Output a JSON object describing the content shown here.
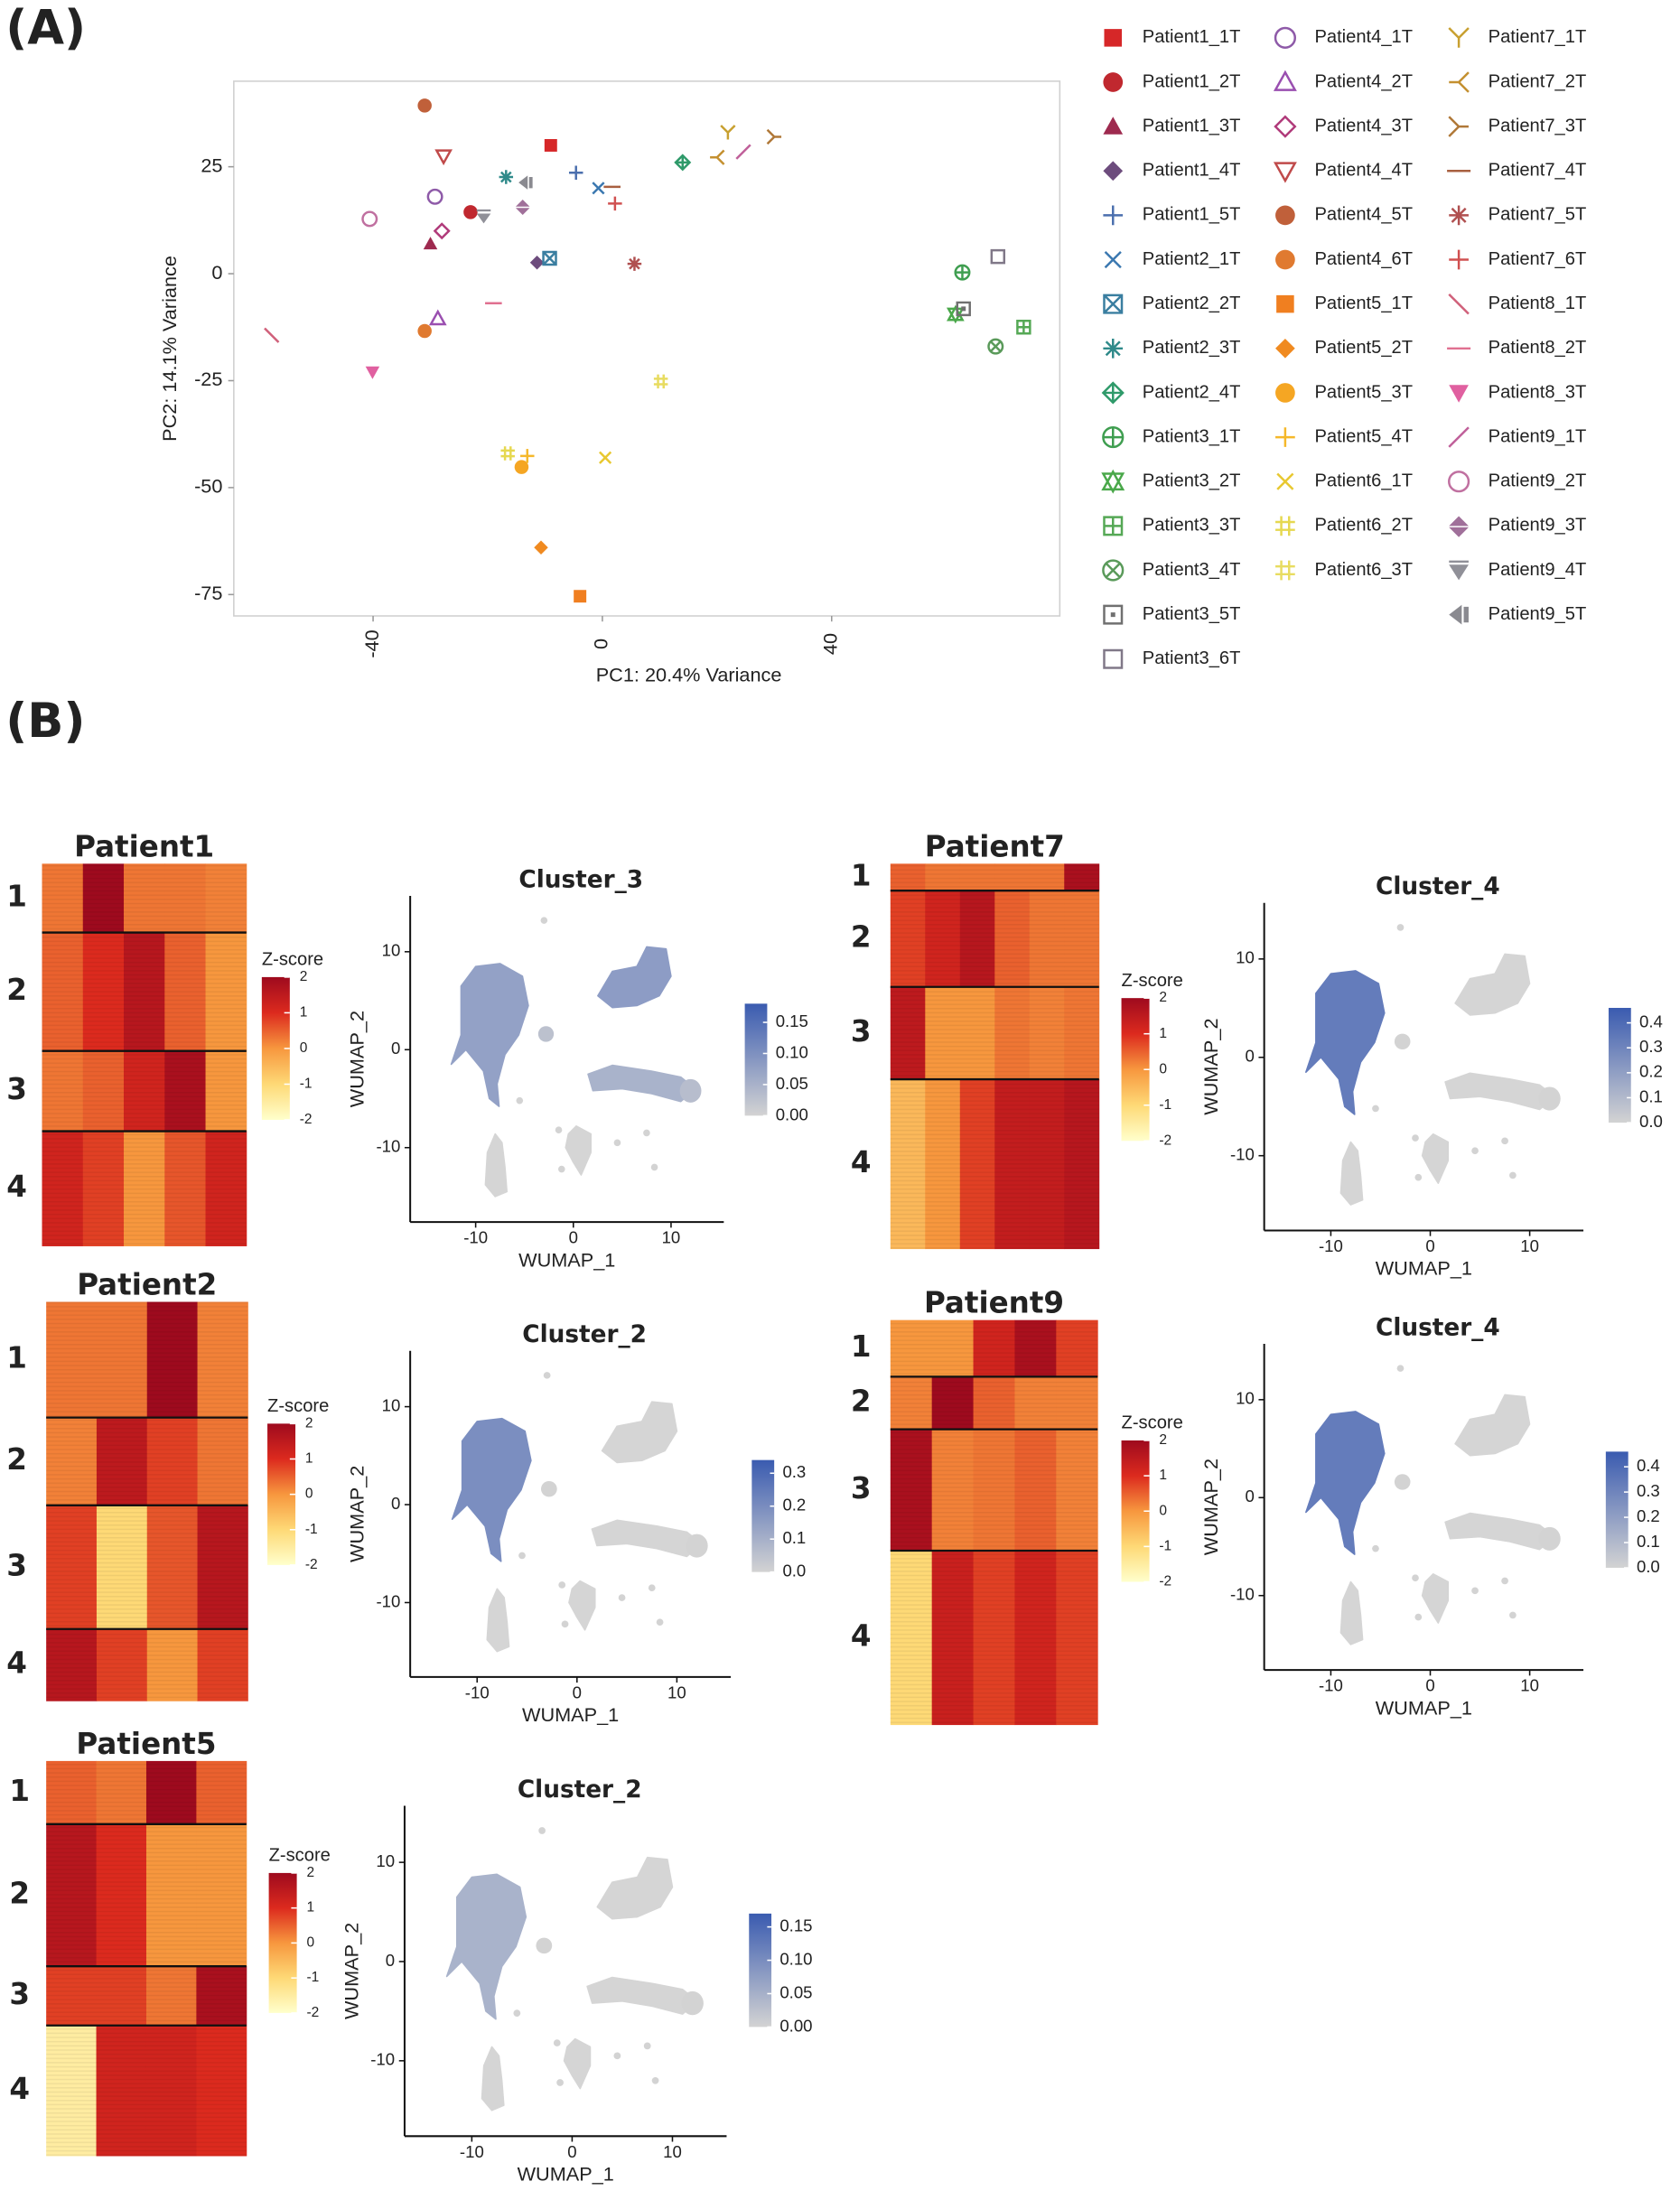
{
  "panel_labels": [
    "(A)",
    "(B)"
  ],
  "chart_data": [
    {
      "type": "scatter",
      "xlabel": "PC1: 20.4% Variance",
      "ylabel": "PC2: 14.1% Variance",
      "xlim": [
        -64.3,
        79.8
      ],
      "ylim": [
        -80,
        45
      ],
      "xticks": [
        -40,
        0,
        40
      ],
      "yticks": [
        25,
        0,
        -25,
        -50,
        -75
      ],
      "grid": false,
      "series": [
        {
          "name": "Patient1_1T",
          "color": "#d62728",
          "marker": "square",
          "x": [
            -9
          ],
          "values": [
            30
          ]
        },
        {
          "name": "Patient1_2T",
          "color": "#c0282f",
          "marker": "circle",
          "x": [
            -23
          ],
          "values": [
            14.4
          ]
        },
        {
          "name": "Patient1_3T",
          "color": "#9e2a4f",
          "marker": "triangle",
          "x": [
            -30
          ],
          "values": [
            7
          ]
        },
        {
          "name": "Patient1_4T",
          "color": "#6d4c7d",
          "marker": "diamond",
          "x": [
            -11.4
          ],
          "values": [
            2.6
          ]
        },
        {
          "name": "Patient1_5T",
          "color": "#4b6fae",
          "marker": "plus",
          "x": [
            -4.6
          ],
          "values": [
            23.6
          ]
        },
        {
          "name": "Patient2_1T",
          "color": "#3b78b0",
          "marker": "cross",
          "x": [
            -0.7
          ],
          "values": [
            20
          ]
        },
        {
          "name": "Patient2_2T",
          "color": "#3a7ea0",
          "marker": "boxcross",
          "x": [
            -9.2
          ],
          "values": [
            3.6
          ]
        },
        {
          "name": "Patient2_3T",
          "color": "#2f8a8a",
          "marker": "asterisk",
          "x": [
            -16.8
          ],
          "values": [
            22.6
          ]
        },
        {
          "name": "Patient2_4T",
          "color": "#2f9a6a",
          "marker": "diamondplus",
          "x": [
            14
          ],
          "values": [
            26
          ]
        },
        {
          "name": "Patient3_1T",
          "color": "#3f9e50",
          "marker": "circleplus",
          "x": [
            62.8
          ],
          "values": [
            0.3
          ]
        },
        {
          "name": "Patient3_2T",
          "color": "#4aa84a",
          "marker": "star",
          "x": [
            61.6
          ],
          "values": [
            -9.5
          ]
        },
        {
          "name": "Patient3_3T",
          "color": "#55a855",
          "marker": "boxplus",
          "x": [
            73.5
          ],
          "values": [
            -12.5
          ]
        },
        {
          "name": "Patient3_4T",
          "color": "#5a9a5a",
          "marker": "circlecross",
          "x": [
            68.6
          ],
          "values": [
            -17
          ]
        },
        {
          "name": "Patient3_5T",
          "color": "#707070",
          "marker": "boxdot",
          "x": [
            63
          ],
          "values": [
            -8.2
          ]
        },
        {
          "name": "Patient3_6T",
          "color": "#807888",
          "marker": "opensquare",
          "x": [
            69
          ],
          "values": [
            4
          ]
        },
        {
          "name": "Patient4_1T",
          "color": "#8e5aa8",
          "marker": "opencircle",
          "x": [
            -29.2
          ],
          "values": [
            18
          ]
        },
        {
          "name": "Patient4_2T",
          "color": "#9a4fb0",
          "marker": "opentriangle",
          "x": [
            -28.7
          ],
          "values": [
            -10.5
          ]
        },
        {
          "name": "Patient4_3T",
          "color": "#b03a7a",
          "marker": "opendiamond",
          "x": [
            -28
          ],
          "values": [
            10
          ]
        },
        {
          "name": "Patient4_4T",
          "color": "#c04a4a",
          "marker": "opentriangledown",
          "x": [
            -27.7
          ],
          "values": [
            27.5
          ]
        },
        {
          "name": "Patient4_5T",
          "color": "#c0603a",
          "marker": "circle",
          "x": [
            -31
          ],
          "values": [
            39.3
          ]
        },
        {
          "name": "Patient4_6T",
          "color": "#e07a30",
          "marker": "circle",
          "x": [
            -31
          ],
          "values": [
            -13.4
          ]
        },
        {
          "name": "Patient5_1T",
          "color": "#f07f20",
          "marker": "square",
          "x": [
            -3.9
          ],
          "values": [
            -75.4
          ]
        },
        {
          "name": "Patient5_2T",
          "color": "#f08a20",
          "marker": "diamond",
          "x": [
            -10.7
          ],
          "values": [
            -64
          ]
        },
        {
          "name": "Patient5_3T",
          "color": "#f5a623",
          "marker": "circle",
          "x": [
            -14.1
          ],
          "values": [
            -45.2
          ]
        },
        {
          "name": "Patient5_4T",
          "color": "#f5b82a",
          "marker": "plus",
          "x": [
            -13.1
          ],
          "values": [
            -42.6
          ]
        },
        {
          "name": "Patient6_1T",
          "color": "#e8c830",
          "marker": "cross",
          "x": [
            0.5
          ],
          "values": [
            -43
          ]
        },
        {
          "name": "Patient6_2T",
          "color": "#e6d850",
          "marker": "hash",
          "x": [
            -16.5
          ],
          "values": [
            -42
          ]
        },
        {
          "name": "Patient6_3T",
          "color": "#e8dc60",
          "marker": "hash",
          "x": [
            10.2
          ],
          "values": [
            -25.2
          ]
        },
        {
          "name": "Patient7_1T",
          "color": "#c8a030",
          "marker": "Y",
          "x": [
            21.9
          ],
          "values": [
            33
          ]
        },
        {
          "name": "Patient7_2T",
          "color": "#c49030",
          "marker": "trileft",
          "x": [
            20
          ],
          "values": [
            27.2
          ]
        },
        {
          "name": "Patient7_3T",
          "color": "#b07838",
          "marker": "triright",
          "x": [
            30
          ],
          "values": [
            32
          ]
        },
        {
          "name": "Patient7_4T",
          "color": "#a86040",
          "marker": "dash",
          "x": [
            1.7
          ],
          "values": [
            20.3
          ]
        },
        {
          "name": "Patient7_5T",
          "color": "#b05050",
          "marker": "asterisk",
          "x": [
            5.6
          ],
          "values": [
            2.3
          ]
        },
        {
          "name": "Patient7_6T",
          "color": "#d05050",
          "marker": "plus",
          "x": [
            2.2
          ],
          "values": [
            16.4
          ]
        },
        {
          "name": "Patient8_1T",
          "color": "#d0607a",
          "marker": "backslash",
          "x": [
            -57.7
          ],
          "values": [
            -14.4
          ]
        },
        {
          "name": "Patient8_2T",
          "color": "#e07090",
          "marker": "dash",
          "x": [
            -19
          ],
          "values": [
            -6.9
          ]
        },
        {
          "name": "Patient8_3T",
          "color": "#e060a0",
          "marker": "triangledown",
          "x": [
            -40.1
          ],
          "values": [
            -23
          ]
        },
        {
          "name": "Patient9_1T",
          "color": "#c0609a",
          "marker": "slash",
          "x": [
            24.6
          ],
          "values": [
            28.5
          ]
        },
        {
          "name": "Patient9_2T",
          "color": "#c070a0",
          "marker": "opencircle",
          "x": [
            -40.6
          ],
          "values": [
            12.8
          ]
        },
        {
          "name": "Patient9_3T",
          "color": "#a0709a",
          "marker": "hourglass",
          "x": [
            -13.9
          ],
          "values": [
            15.7
          ]
        },
        {
          "name": "Patient9_4T",
          "color": "#909098",
          "marker": "hourglass2",
          "x": [
            -20.7
          ],
          "values": [
            13.4
          ]
        },
        {
          "name": "Patient9_5T",
          "color": "#8a8a90",
          "marker": "bowtie",
          "x": [
            -13.4
          ],
          "values": [
            21.3
          ]
        }
      ]
    },
    {
      "type": "heatmap",
      "title": "Patient1",
      "row_labels": [
        "1",
        "2",
        "3",
        "4"
      ],
      "row_sizes": [
        18,
        31,
        21,
        30
      ],
      "values": [
        [
          0.3,
          2,
          0.3,
          0.3,
          0.2
        ],
        [
          0.5,
          1,
          1.6,
          0.5,
          0
        ],
        [
          0.3,
          0.5,
          1.2,
          1.8,
          0
        ],
        [
          1.2,
          0.8,
          0,
          0.6,
          1.2
        ]
      ],
      "zlim": [
        -2,
        2
      ],
      "colorbar_title": "Z-score",
      "colorbar_ticks": [
        2,
        1,
        0,
        -1,
        -2
      ],
      "colorscale": [
        "#ffffcc",
        "#fed976",
        "#f7973e",
        "#dc2a1e",
        "#9e0a1e"
      ]
    },
    {
      "type": "umap",
      "title": "Cluster_3",
      "xlabel": "WUMAP_1",
      "ylabel": "WUMAP_2",
      "xlim": [
        -16.7,
        15.4
      ],
      "ylim": [
        -17.6,
        15.7
      ],
      "xticks": [
        -10,
        0,
        10
      ],
      "yticks": [
        10,
        0,
        -10
      ],
      "clim": [
        0,
        0.18
      ],
      "colorbar_ticks": [
        0.15,
        0.05,
        {
          "value": 0.1,
          "label": "0.10"
        },
        {
          "value": 0,
          "label": "0.00"
        }
      ],
      "low_color": "#d3d3d3",
      "high_color": "#3a5bb0"
    },
    {
      "type": "heatmap",
      "title": "Patient2",
      "row_labels": [
        "1",
        "2",
        "3",
        "4"
      ],
      "row_sizes": [
        29,
        22,
        31,
        18
      ],
      "values": [
        [
          0.3,
          0.3,
          2,
          0.2
        ],
        [
          0.2,
          1.5,
          0.8,
          0.3
        ],
        [
          0.8,
          -1,
          0.6,
          1.6
        ],
        [
          1.6,
          0.8,
          0,
          0.8
        ]
      ],
      "zlim": [
        -2,
        2
      ],
      "colorbar_title": "Z-score",
      "colorbar_ticks": [
        2,
        1,
        0,
        -1,
        -2
      ],
      "colorscale": [
        "#ffffcc",
        "#fed976",
        "#f7973e",
        "#dc2a1e",
        "#9e0a1e"
      ]
    },
    {
      "type": "umap",
      "title": "Cluster_2",
      "xlabel": "WUMAP_1",
      "ylabel": "WUMAP_2",
      "xlim": [
        -16.7,
        15.4
      ],
      "ylim": [
        -17.6,
        15.7
      ],
      "xticks": [
        -10,
        0,
        10
      ],
      "yticks": [
        10,
        0,
        -10
      ],
      "clim": [
        0,
        0.34
      ],
      "colorbar_ticks": [
        0.3,
        0.2,
        0.1,
        {
          "value": 0,
          "label": "0.0"
        }
      ],
      "low_color": "#d3d3d3",
      "high_color": "#3a5bb0"
    },
    {
      "type": "heatmap",
      "title": "Patient5",
      "row_labels": [
        "1",
        "2",
        "3",
        "4"
      ],
      "row_sizes": [
        16,
        36,
        15,
        33
      ],
      "values": [
        [
          0.5,
          0.3,
          2,
          0.5
        ],
        [
          1.6,
          1,
          0,
          0
        ],
        [
          0.8,
          0.8,
          0.3,
          1.8
        ],
        [
          -1.5,
          1.2,
          1.2,
          1
        ]
      ],
      "zlim": [
        -2,
        2
      ],
      "colorbar_title": "Z-score",
      "colorbar_ticks": [
        2,
        1,
        0,
        -1,
        -2
      ],
      "colorscale": [
        "#ffffcc",
        "#fed976",
        "#f7973e",
        "#dc2a1e",
        "#9e0a1e"
      ]
    },
    {
      "type": "umap",
      "title": "Cluster_2",
      "xlabel": "WUMAP_1",
      "ylabel": "WUMAP_2",
      "xlim": [
        -16.7,
        15.4
      ],
      "ylim": [
        -17.6,
        15.7
      ],
      "xticks": [
        -10,
        0,
        10
      ],
      "yticks": [
        10,
        0,
        -10
      ],
      "clim": [
        0,
        0.17
      ],
      "colorbar_ticks": [
        0.15,
        {
          "value": 0.1,
          "label": "0.10"
        },
        0.05,
        {
          "value": 0,
          "label": "0.00"
        }
      ],
      "low_color": "#d3d3d3",
      "high_color": "#3a5bb0"
    },
    {
      "type": "heatmap",
      "title": "Patient7",
      "row_labels": [
        "1",
        "2",
        "3",
        "4"
      ],
      "row_sizes": [
        7,
        25,
        24,
        44
      ],
      "values": [
        [
          0.5,
          0.3,
          0.3,
          0.3,
          0.3,
          1.8
        ],
        [
          0.8,
          1.2,
          1.6,
          0.5,
          0.3,
          0.3
        ],
        [
          1.5,
          0,
          0,
          0.3,
          0.2,
          0.3
        ],
        [
          -0.5,
          0,
          0.8,
          1.4,
          1.4,
          1.6
        ]
      ],
      "zlim": [
        -2,
        2
      ],
      "colorbar_title": "Z-score",
      "colorbar_ticks": [
        2,
        1,
        0,
        -1,
        -2
      ],
      "colorscale": [
        "#ffffcc",
        "#fed976",
        "#f7973e",
        "#dc2a1e",
        "#9e0a1e"
      ]
    },
    {
      "type": "umap",
      "title": "Cluster_4",
      "xlabel": "WUMAP_1",
      "ylabel": "WUMAP_2",
      "xlim": [
        -16.7,
        15.4
      ],
      "ylim": [
        -17.6,
        15.7
      ],
      "xticks": [
        -10,
        0,
        10
      ],
      "yticks": [
        10,
        0,
        -10
      ],
      "clim": [
        0,
        0.46
      ],
      "colorbar_ticks": [
        0.4,
        0.3,
        0.2,
        0.1,
        {
          "value": 0,
          "label": "0.0"
        }
      ],
      "low_color": "#d3d3d3",
      "high_color": "#3a5bb0"
    },
    {
      "type": "heatmap",
      "title": "Patient9",
      "row_labels": [
        "1",
        "2",
        "3",
        "4"
      ],
      "row_sizes": [
        14,
        13,
        30,
        43
      ],
      "values": [
        [
          0,
          0,
          1.2,
          1.8,
          0.8
        ],
        [
          0.2,
          2,
          0.5,
          0.2,
          0.2
        ],
        [
          1.8,
          0.2,
          0.3,
          0.5,
          0.2
        ],
        [
          -1,
          1.3,
          0.8,
          1.2,
          0.8
        ]
      ],
      "zlim": [
        -2,
        2
      ],
      "colorbar_title": "Z-score",
      "colorbar_ticks": [
        2,
        1,
        0,
        -1,
        -2
      ],
      "colorscale": [
        "#ffffcc",
        "#fed976",
        "#f7973e",
        "#dc2a1e",
        "#9e0a1e"
      ]
    },
    {
      "type": "umap",
      "title": "Cluster_4",
      "xlabel": "WUMAP_1",
      "ylabel": "WUMAP_2",
      "xlim": [
        -16.7,
        15.4
      ],
      "ylim": [
        -17.6,
        15.7
      ],
      "xticks": [
        -10,
        0,
        10
      ],
      "yticks": [
        10,
        0,
        -10
      ],
      "clim": [
        0,
        0.46
      ],
      "colorbar_ticks": [
        0.4,
        0.3,
        0.2,
        0.1,
        {
          "value": 0,
          "label": "0.0"
        }
      ],
      "low_color": "#d3d3d3",
      "high_color": "#3a5bb0"
    }
  ]
}
